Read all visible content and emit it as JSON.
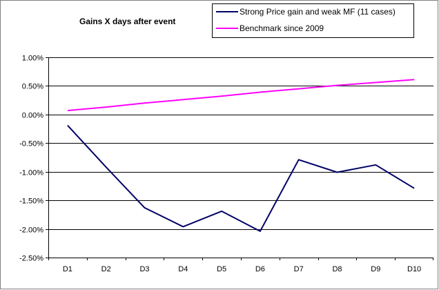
{
  "chart_data": {
    "type": "line",
    "title": "Gains X days after event",
    "xlabel": "",
    "ylabel": "",
    "categories": [
      "D1",
      "D2",
      "D3",
      "D4",
      "D5",
      "D6",
      "D7",
      "D8",
      "D9",
      "D10"
    ],
    "series": [
      {
        "name": "Strong Price gain and weak MF (11 cases)",
        "color": "#000066",
        "values": [
          -0.19,
          -0.92,
          -1.63,
          -1.96,
          -1.69,
          -2.04,
          -0.79,
          -1.01,
          -0.88,
          -1.29
        ]
      },
      {
        "name": "Benchmark since 2009",
        "color": "#ff00ff",
        "values": [
          0.07,
          0.13,
          0.2,
          0.26,
          0.32,
          0.39,
          0.45,
          0.51,
          0.56,
          0.61
        ]
      }
    ],
    "ylim": [
      -2.5,
      1.0
    ],
    "yticks": [
      1.0,
      0.5,
      0.0,
      -0.5,
      -1.0,
      -1.5,
      -2.0,
      -2.5
    ],
    "ytick_labels": [
      "1.00%",
      "0.50%",
      "0.00%",
      "-0.50%",
      "-1.00%",
      "-1.50%",
      "-2.00%",
      "-2.50%"
    ],
    "grid": true,
    "legend_position": "top-right"
  }
}
